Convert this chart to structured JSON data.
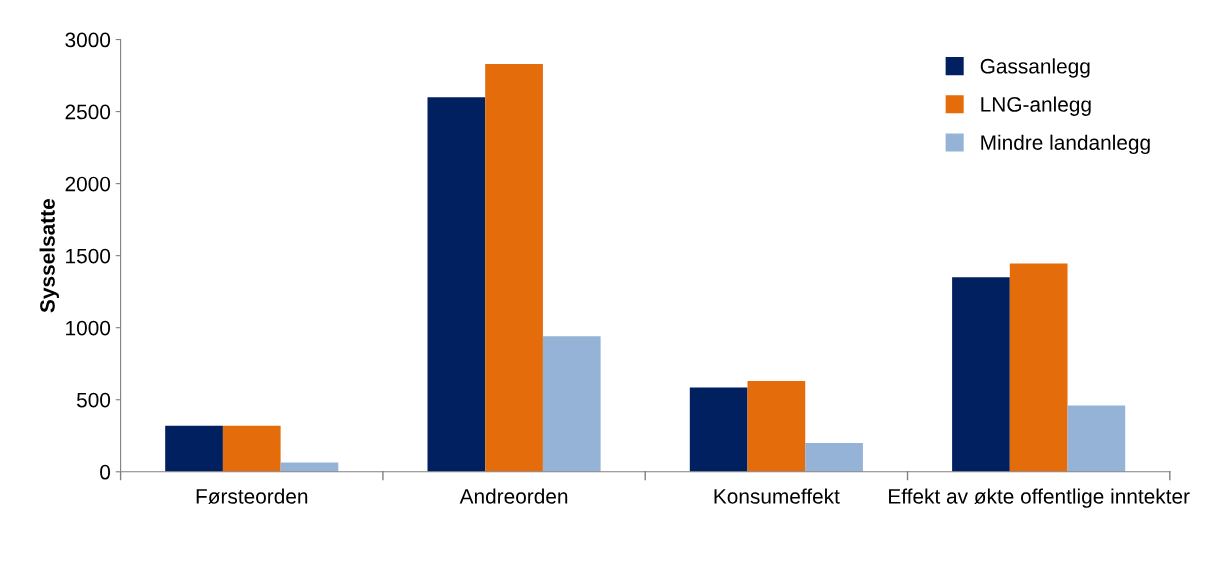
{
  "chart_data": {
    "type": "bar",
    "ylabel": "Sysselsatte",
    "categories": [
      "Førsteorden",
      "Andreorden",
      "Konsumeffekt",
      "Effekt av økte offentlige inntekter"
    ],
    "series": [
      {
        "name": "Gassanlegg",
        "color": "#002060",
        "values": [
          320,
          2600,
          585,
          1350
        ]
      },
      {
        "name": "LNG-anlegg",
        "color": "#e46c0a",
        "values": [
          320,
          2830,
          630,
          1445
        ]
      },
      {
        "name": "Mindre landanlegg",
        "color": "#95b3d7",
        "values": [
          65,
          940,
          200,
          460
        ]
      }
    ],
    "ylim": [
      0,
      3000
    ],
    "yticks": [
      0,
      500,
      1000,
      1500,
      2000,
      2500,
      3000
    ],
    "grid": false,
    "legend": "top right"
  }
}
